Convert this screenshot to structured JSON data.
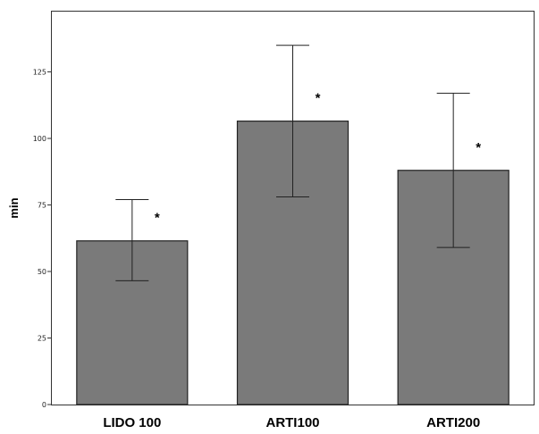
{
  "chart_data": {
    "type": "bar",
    "title": "",
    "xlabel": "",
    "ylabel": "min",
    "ylim": [
      0,
      145
    ],
    "yticks": [
      0,
      25,
      50,
      75,
      100,
      125
    ],
    "grid": false,
    "legend": "none",
    "bar_color": "#7a7a7a",
    "categories": [
      "LIDO 100",
      "ARTI100",
      "ARTI200"
    ],
    "values": [
      61.5,
      106.5,
      88
    ],
    "error_low": [
      46.5,
      78,
      59
    ],
    "error_high": [
      77,
      135,
      117
    ],
    "annotations": [
      "*",
      "*",
      "*"
    ]
  }
}
